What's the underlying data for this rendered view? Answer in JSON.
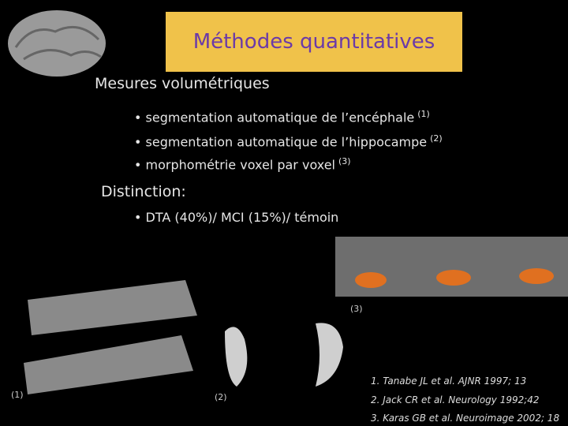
{
  "header": {
    "title": "Méthodes quantitatives"
  },
  "sections": [
    {
      "heading": "Mesures volumétriques",
      "bullets": [
        {
          "text": "segmentation automatique de l’encéphale",
          "ref": "(1)"
        },
        {
          "text": "segmentation automatique de l’hippocampe",
          "ref": "(2)"
        },
        {
          "text": "morphométrie voxel par voxel",
          "ref": "(3)"
        }
      ]
    },
    {
      "heading": "Distinction:",
      "bullets": [
        {
          "text": "DTA (40%)/ MCI (15%)/ témoin"
        }
      ]
    }
  ],
  "figures": [
    {
      "label": "(1)"
    },
    {
      "label": "(2)"
    },
    {
      "label": "(3)"
    }
  ],
  "references": [
    "1. Tanabe JL et al. AJNR 1997; 13",
    "2. Jack CR et al. Neurology 1992;42",
    "3. Karas GB et al. Neuroimage 2002; 18"
  ]
}
